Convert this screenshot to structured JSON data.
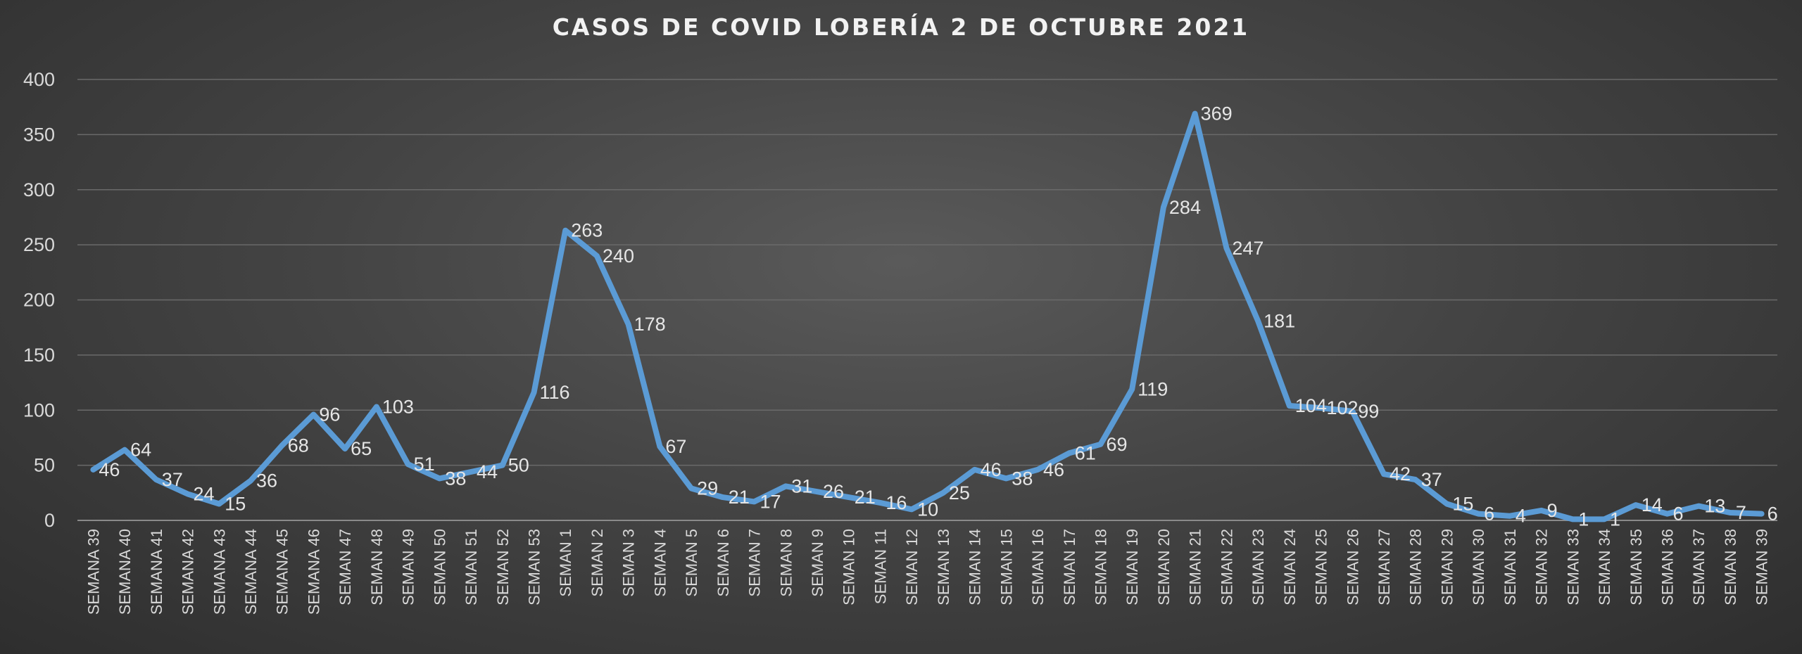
{
  "chart_data": {
    "type": "line",
    "title": "CASOS DE COVID LOBERÍA 2 DE OCTUBRE 2021",
    "xlabel": "",
    "ylabel": "",
    "ylim": [
      0,
      400
    ],
    "yticks": [
      "0",
      "50",
      "100",
      "150",
      "200",
      "250",
      "300",
      "350",
      "400"
    ],
    "grid": true,
    "line_color": "#5b9bd5",
    "categories": [
      "SEMANA 39",
      "SEMANA 40",
      "SEMANA 41",
      "SEMANA 42",
      "SEMANA 43",
      "SEMANA 44",
      "SEMANA 45",
      "SEMANA 46",
      "SEMAN 47",
      "SEMAN 48",
      "SEMAN 49",
      "SEMAN 50",
      "SEMAN 51",
      "SEMAN 52",
      "SEMAN 53",
      "SEMAN 1",
      "SEMAN 2",
      "SEMAN 3",
      "SEMAN 4",
      "SEMAN 5",
      "SEMAN 6",
      "SEMAN 7",
      "SEMAN 8",
      "SEMAN 9",
      "SEMAN 10",
      "SEMAN 11",
      "SEMAN 12",
      "SEMAN 13",
      "SEMAN 14",
      "SEMAN 15",
      "SEMAN 16",
      "SEMAN 17",
      "SEMAN 18",
      "SEMAN 19",
      "SEMAN 20",
      "SEMAN 21",
      "SEMAN 22",
      "SEMAN 23",
      "SEMAN 24",
      "SEMAN 25",
      "SEMAN 26",
      "SEMAN 27",
      "SEMAN 28",
      "SEMAN 29",
      "SEMAN 30",
      "SEMAN 31",
      "SEMAN 32",
      "SEMAN 33",
      "SEMAN 34",
      "SEMAN 35",
      "SEMAN 36",
      "SEMAN 37",
      "SEMAN 38",
      "SEMAN 39"
    ],
    "values": [
      46,
      64,
      37,
      24,
      15,
      36,
      68,
      96,
      65,
      103,
      51,
      38,
      44,
      50,
      116,
      263,
      240,
      178,
      67,
      29,
      21,
      17,
      31,
      26,
      21,
      16,
      10,
      25,
      46,
      38,
      46,
      61,
      69,
      119,
      284,
      369,
      247,
      181,
      104,
      102,
      99,
      42,
      37,
      15,
      6,
      4,
      9,
      1,
      1,
      14,
      6,
      13,
      7,
      6
    ]
  }
}
